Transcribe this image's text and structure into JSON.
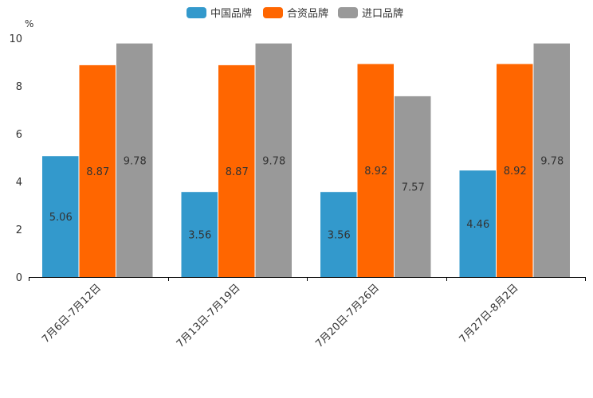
{
  "chart_data": {
    "type": "bar",
    "title": "",
    "ylabel": "%",
    "xlabel": "",
    "ylim": [
      0,
      10
    ],
    "yticks": [
      0,
      2,
      4,
      6,
      8,
      10
    ],
    "legend_position": "top-center",
    "categories": [
      "7月6日-7月12日",
      "7月13日-7月19日",
      "7月20日-7月26日",
      "7月27日-8月2日"
    ],
    "series": [
      {
        "name": "中国品牌",
        "color": "#3399cc",
        "values": [
          5.06,
          3.56,
          3.56,
          4.46
        ]
      },
      {
        "name": "合资品牌",
        "color": "#ff6600",
        "values": [
          8.87,
          8.87,
          8.92,
          8.92
        ]
      },
      {
        "name": "进口品牌",
        "color": "#999999",
        "values": [
          9.78,
          9.78,
          7.57,
          9.78
        ]
      }
    ]
  }
}
